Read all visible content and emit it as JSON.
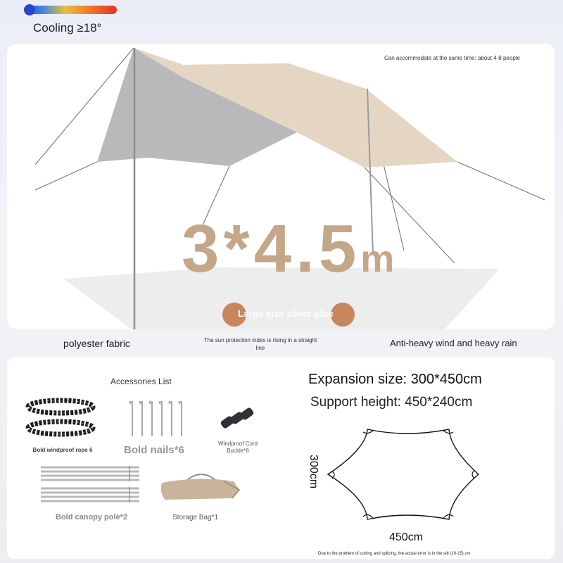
{
  "colors": {
    "accent_tan": "#c4a688",
    "glue_dot": "#c7865d",
    "canopy_beige": "#e5d6c3",
    "canopy_silver": "#b9b9bc"
  },
  "top": {
    "cooling_label": "Cooling ≥18°"
  },
  "hero": {
    "capacity_note": "Can accommodate at the same time: about 4-8 people",
    "size_number": "3*4.5",
    "size_unit": "m",
    "glue_label": "Large size silver glue"
  },
  "features": [
    "polyester fabric",
    "The sun protection index is rising in a straight line",
    "Anti-heavy wind and heavy rain"
  ],
  "accessories": {
    "title": "Accessories List",
    "items": [
      {
        "label": "Bold windproof rope 6",
        "icon": "rope-icon"
      },
      {
        "label": "Bold nails*6",
        "icon": "nail-icon"
      },
      {
        "label": "Windproof Cord Buckle*6",
        "icon": "buckle-icon"
      },
      {
        "label": "Bold canopy pole*2",
        "icon": "pole-icon"
      },
      {
        "label": "Storage Bag*1",
        "icon": "bag-icon"
      }
    ]
  },
  "specs": {
    "expansion": "Expansion size: 300*450cm",
    "support": "Support height: 450*240cm",
    "dim_side": "300cm",
    "dim_bottom": "450cm",
    "error_note": "Due to the problem of cutting and splicing, the actual error is in the sdi (10-15) cm"
  }
}
